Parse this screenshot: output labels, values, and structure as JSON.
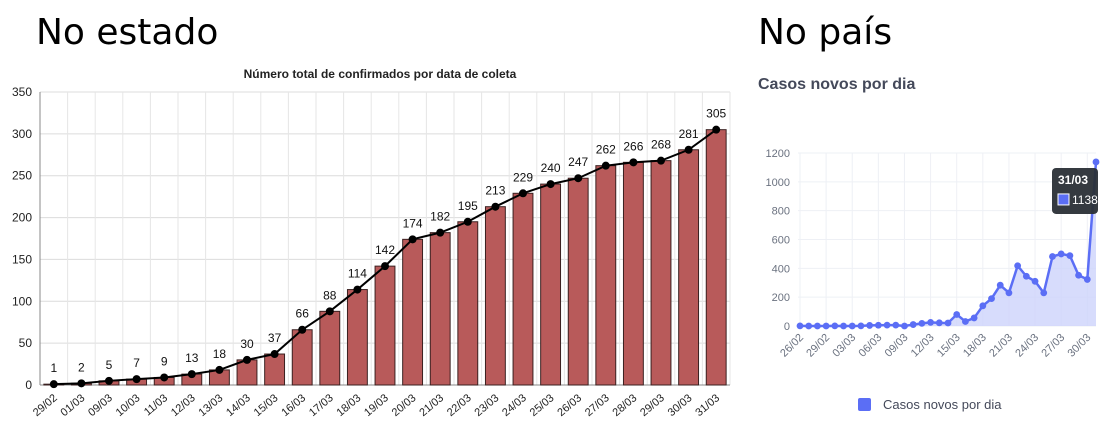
{
  "left_heading": "No estado",
  "right_heading": "No país",
  "right_subtitle": "Casos novos por dia",
  "chart_data": [
    {
      "type": "bar",
      "title": "Número total de confirmados por data de coleta",
      "categories": [
        "29/02",
        "01/03",
        "09/03",
        "10/03",
        "11/03",
        "12/03",
        "13/03",
        "14/03",
        "15/03",
        "16/03",
        "17/03",
        "18/03",
        "19/03",
        "20/03",
        "21/03",
        "22/03",
        "23/03",
        "24/03",
        "25/03",
        "26/03",
        "27/03",
        "28/03",
        "29/03",
        "30/03",
        "31/03"
      ],
      "values": [
        1,
        2,
        5,
        7,
        9,
        13,
        18,
        30,
        37,
        66,
        88,
        114,
        142,
        174,
        182,
        195,
        213,
        229,
        240,
        247,
        262,
        266,
        268,
        281,
        305
      ],
      "overlay_line": true,
      "ylim": [
        0,
        350
      ],
      "yticks": [
        0,
        50,
        100,
        150,
        200,
        250,
        300,
        350
      ],
      "grid": true,
      "bar_color": "#b85a5a",
      "line_color": "#000000"
    },
    {
      "type": "area",
      "title": "Casos novos por dia",
      "x": [
        "26/02",
        "27/02",
        "28/02",
        "29/02",
        "01/03",
        "02/03",
        "03/03",
        "04/03",
        "05/03",
        "06/03",
        "07/03",
        "08/03",
        "09/03",
        "10/03",
        "11/03",
        "12/03",
        "13/03",
        "14/03",
        "15/03",
        "16/03",
        "17/03",
        "18/03",
        "19/03",
        "20/03",
        "21/03",
        "22/03",
        "23/03",
        "24/03",
        "25/03",
        "26/03",
        "27/03",
        "28/03",
        "29/03",
        "30/03",
        "31/03"
      ],
      "xticks": [
        "26/02",
        "29/02",
        "03/03",
        "06/03",
        "09/03",
        "12/03",
        "15/03",
        "18/03",
        "21/03",
        "24/03",
        "27/03",
        "30/03"
      ],
      "values": [
        1,
        0,
        0,
        0,
        1,
        0,
        0,
        1,
        4,
        5,
        6,
        6,
        0,
        10,
        18,
        25,
        22,
        21,
        80,
        31,
        56,
        140,
        190,
        283,
        230,
        418,
        345,
        310,
        230,
        482,
        500,
        488,
        352,
        323,
        1138
      ],
      "ylim": [
        0,
        1200
      ],
      "yticks": [
        0,
        200,
        400,
        600,
        800,
        1000,
        1200
      ],
      "series": [
        {
          "name": "Casos novos por dia",
          "values_ref": "values"
        }
      ],
      "legend": "bottom",
      "tooltip": {
        "label": "31/03",
        "value": "1138"
      },
      "color": "#5b6ef5"
    }
  ]
}
